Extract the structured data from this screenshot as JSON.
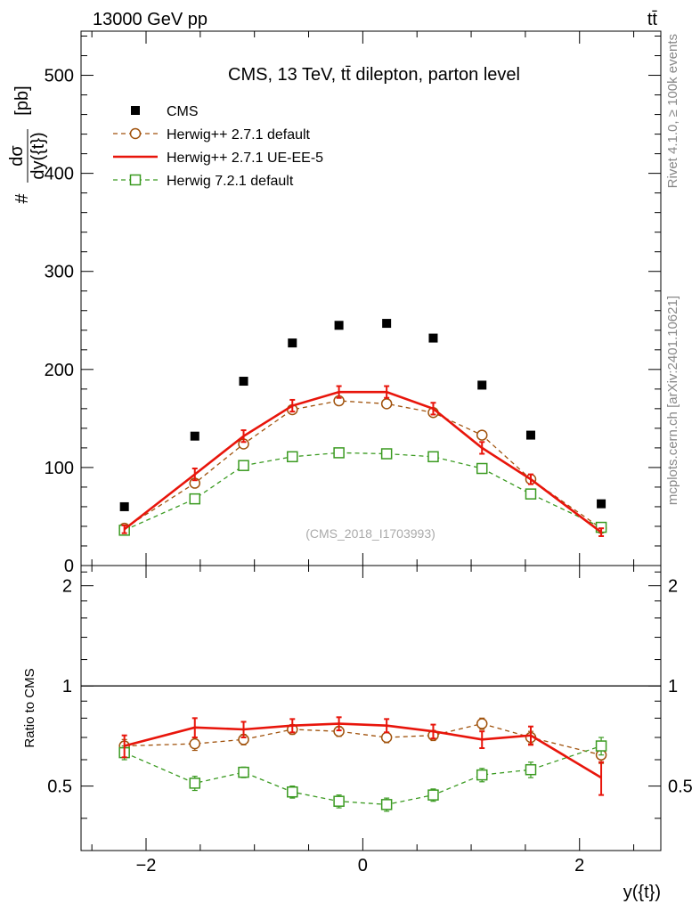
{
  "header": {
    "energy_label": "13000 GeV pp",
    "process_label": "tt̄"
  },
  "side_labels": {
    "rivet": "Rivet 4.1.0, ≥ 100k events",
    "source": "mcplots.cern.ch [arXiv:2401.10621]"
  },
  "chart_data": {
    "type": "line",
    "title": "CMS, 13 TeV, tt̄ dilepton, parton level",
    "watermark": "(CMS_2018_I1703993)",
    "xlabel": "y({t})",
    "ylabel": "#dσ/dy({t}) [pb]",
    "ylabel_parts": {
      "prefix": "#",
      "numerator": "dσ",
      "denominator": "dy({t})",
      "unit": "[pb]"
    },
    "ratio_ylabel": "Ratio to CMS",
    "xlim": [
      -2.6,
      2.75
    ],
    "ylim": [
      0,
      545
    ],
    "ratio_ylim": [
      0.32,
      2.3
    ],
    "x_ticks": [
      -2,
      0,
      2
    ],
    "x_tick_labels": [
      "−2",
      "0",
      "2"
    ],
    "y_ticks": [
      0,
      100,
      200,
      300,
      400,
      500
    ],
    "y_tick_labels": [
      "0",
      "100",
      "200",
      "300",
      "400",
      "500"
    ],
    "ratio_ticks": [
      0.5,
      1,
      2
    ],
    "ratio_tick_labels": [
      "0.5",
      "1",
      "2"
    ],
    "x": [
      -2.2,
      -1.55,
      -1.1,
      -0.65,
      -0.22,
      0.22,
      0.65,
      1.1,
      1.55,
      2.2
    ],
    "bin_edges": [
      -2.6,
      -1.8,
      -1.35,
      -0.9,
      -0.45,
      0.0,
      0.45,
      0.9,
      1.35,
      1.8,
      2.6
    ],
    "legend_position": "top-left",
    "series": [
      {
        "name": "CMS",
        "style": "data",
        "color": "#000000",
        "values": [
          60,
          132,
          188,
          227,
          245,
          247,
          232,
          184,
          133,
          63
        ]
      },
      {
        "name": "Herwig++ 2.7.1 default",
        "style": "dashed-circle",
        "color": "#a0520c",
        "values": [
          38,
          84,
          124,
          159,
          168,
          165,
          156,
          133,
          88,
          38
        ],
        "errors": [
          2,
          3,
          4,
          4,
          4,
          4,
          4,
          4,
          3,
          2
        ],
        "ratio": [
          0.66,
          0.67,
          0.69,
          0.74,
          0.73,
          0.7,
          0.71,
          0.77,
          0.7,
          0.62
        ],
        "ratio_errors": [
          0.03,
          0.03,
          0.025,
          0.025,
          0.025,
          0.025,
          0.025,
          0.03,
          0.03,
          0.035
        ]
      },
      {
        "name": "Herwig++ 2.7.1 UE-EE-5",
        "style": "solid",
        "color": "#e8150b",
        "values": [
          37,
          93,
          132,
          163,
          177,
          177,
          160,
          120,
          88,
          34
        ],
        "errors": [
          4,
          6,
          6,
          6,
          6,
          6,
          6,
          6,
          5,
          4
        ],
        "ratio": [
          0.66,
          0.75,
          0.74,
          0.76,
          0.77,
          0.76,
          0.73,
          0.69,
          0.71,
          0.53
        ],
        "ratio_errors": [
          0.05,
          0.05,
          0.04,
          0.035,
          0.035,
          0.035,
          0.035,
          0.04,
          0.045,
          0.06
        ]
      },
      {
        "name": "Herwig 7.2.1 default",
        "style": "dashed-square",
        "color": "#3a9a20",
        "values": [
          36,
          68,
          102,
          111,
          115,
          114,
          111,
          99,
          73,
          39
        ],
        "errors": [
          2,
          2,
          2,
          2,
          2,
          2,
          2,
          2,
          2,
          2
        ],
        "ratio": [
          0.63,
          0.51,
          0.55,
          0.48,
          0.45,
          0.44,
          0.47,
          0.54,
          0.56,
          0.66
        ],
        "ratio_errors": [
          0.03,
          0.025,
          0.02,
          0.02,
          0.02,
          0.02,
          0.02,
          0.025,
          0.03,
          0.04
        ]
      }
    ]
  }
}
